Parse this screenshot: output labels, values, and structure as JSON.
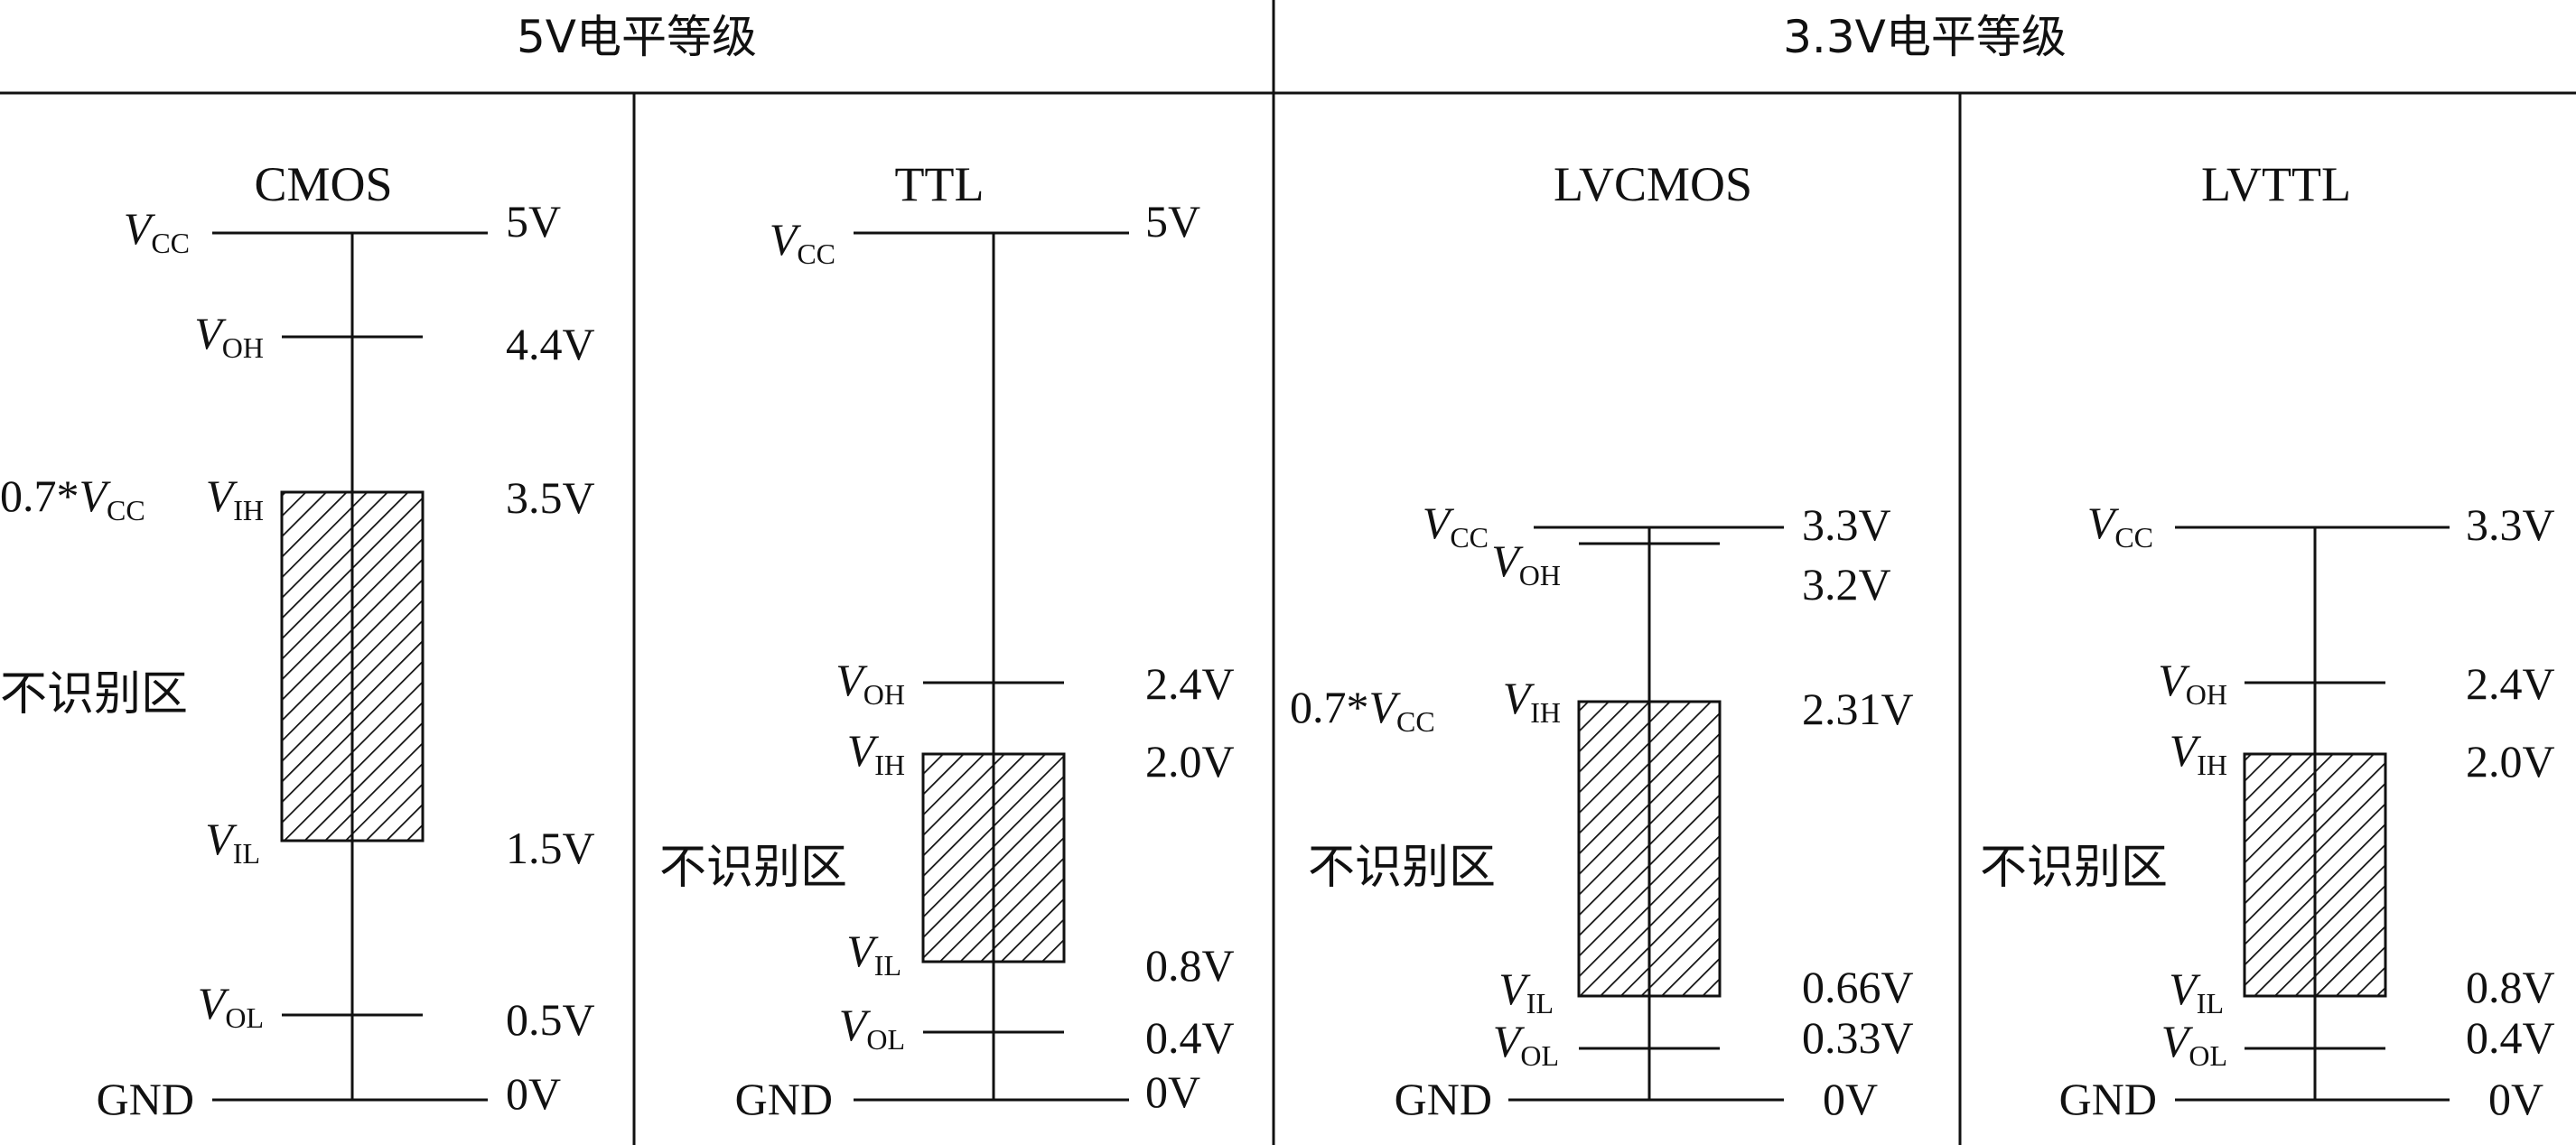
{
  "colors": {
    "ink": "#111111",
    "background": "#ffffff"
  },
  "groups": [
    {
      "title": "5V电平等级"
    },
    {
      "title": "3.3V电平等级"
    }
  ],
  "panels": [
    {
      "title": "CMOS",
      "levels": {
        "vcc": {
          "sym": "V",
          "sub": "CC",
          "value": "5V"
        },
        "voh": {
          "sym": "V",
          "sub": "OH",
          "value": "4.4V"
        },
        "vih": {
          "sym": "V",
          "sub": "IH",
          "value": "3.5V",
          "prefix": "0.7*",
          "prefix_sym": "V",
          "prefix_sub": "CC"
        },
        "vil": {
          "sym": "V",
          "sub": "IL",
          "value": "1.5V"
        },
        "vol": {
          "sym": "V",
          "sub": "OL",
          "value": "0.5V"
        },
        "gnd": {
          "label": "GND",
          "value": "0V"
        }
      },
      "zone_label": "不识别区"
    },
    {
      "title": "TTL",
      "levels": {
        "vcc": {
          "sym": "V",
          "sub": "CC",
          "value": "5V"
        },
        "voh": {
          "sym": "V",
          "sub": "OH",
          "value": "2.4V"
        },
        "vih": {
          "sym": "V",
          "sub": "IH",
          "value": "2.0V"
        },
        "vil": {
          "sym": "V",
          "sub": "IL",
          "value": "0.8V"
        },
        "vol": {
          "sym": "V",
          "sub": "OL",
          "value": "0.4V"
        },
        "gnd": {
          "label": "GND",
          "value": "0V"
        }
      },
      "zone_label": "不识别区"
    },
    {
      "title": "LVCMOS",
      "levels": {
        "vcc": {
          "sym": "V",
          "sub": "CC",
          "value": "3.3V"
        },
        "voh": {
          "sym": "V",
          "sub": "OH",
          "value": "3.2V"
        },
        "vih": {
          "sym": "V",
          "sub": "IH",
          "value": "2.31V",
          "prefix": "0.7*",
          "prefix_sym": "V",
          "prefix_sub": "CC"
        },
        "vil": {
          "sym": "V",
          "sub": "IL",
          "value": "0.66V"
        },
        "vol": {
          "sym": "V",
          "sub": "OL",
          "value": "0.33V"
        },
        "gnd": {
          "label": "GND",
          "value": "0V"
        }
      },
      "zone_label": "不识别区"
    },
    {
      "title": "LVTTL",
      "levels": {
        "vcc": {
          "sym": "V",
          "sub": "CC",
          "value": "3.3V"
        },
        "voh": {
          "sym": "V",
          "sub": "OH",
          "value": "2.4V"
        },
        "vih": {
          "sym": "V",
          "sub": "IH",
          "value": "2.0V"
        },
        "vil": {
          "sym": "V",
          "sub": "IL",
          "value": "0.8V"
        },
        "vol": {
          "sym": "V",
          "sub": "OL",
          "value": "0.4V"
        },
        "gnd": {
          "label": "GND",
          "value": "0V"
        }
      },
      "zone_label": "不识别区"
    }
  ]
}
